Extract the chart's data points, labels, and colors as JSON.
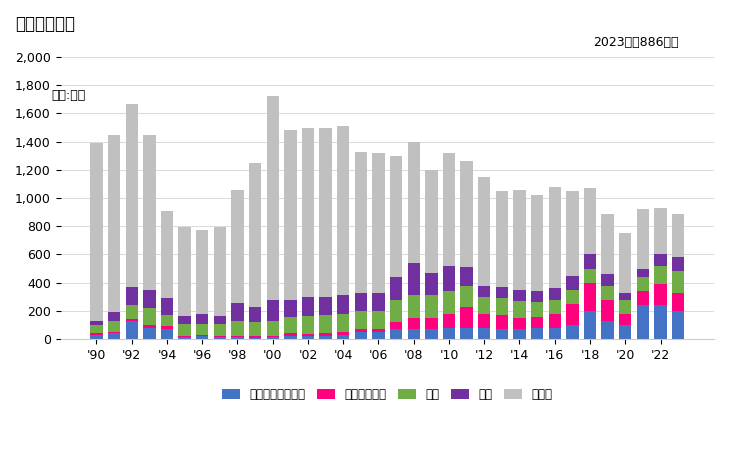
{
  "years": [
    1990,
    1991,
    1992,
    1993,
    1994,
    1995,
    1996,
    1997,
    1998,
    1999,
    2000,
    2001,
    2002,
    2003,
    2004,
    2005,
    2006,
    2007,
    2008,
    2009,
    2010,
    2011,
    2012,
    2013,
    2014,
    2015,
    2016,
    2017,
    2018,
    2019,
    2020,
    2021,
    2022,
    2023
  ],
  "UAE": [
    30,
    40,
    130,
    80,
    70,
    15,
    20,
    15,
    15,
    10,
    15,
    25,
    20,
    20,
    30,
    50,
    50,
    70,
    70,
    70,
    80,
    80,
    80,
    70,
    70,
    80,
    80,
    100,
    200,
    130,
    100,
    240,
    240,
    200
  ],
  "Indonesia": [
    10,
    10,
    10,
    20,
    20,
    10,
    10,
    10,
    10,
    10,
    10,
    15,
    15,
    20,
    20,
    20,
    20,
    50,
    80,
    80,
    100,
    150,
    100,
    100,
    80,
    80,
    100,
    150,
    200,
    150,
    80,
    100,
    150,
    130
  ],
  "USA": [
    60,
    80,
    100,
    120,
    80,
    80,
    80,
    80,
    100,
    100,
    100,
    120,
    130,
    130,
    130,
    130,
    130,
    160,
    160,
    160,
    160,
    150,
    120,
    120,
    120,
    100,
    100,
    100,
    100,
    100,
    100,
    100,
    130,
    150
  ],
  "China": [
    30,
    60,
    130,
    130,
    120,
    60,
    70,
    60,
    130,
    110,
    150,
    120,
    130,
    130,
    130,
    130,
    130,
    160,
    230,
    160,
    180,
    130,
    80,
    80,
    80,
    80,
    80,
    100,
    100,
    80,
    50,
    60,
    80,
    100
  ],
  "Others": [
    1260,
    1260,
    1300,
    1100,
    620,
    630,
    590,
    630,
    800,
    1020,
    1450,
    1200,
    1200,
    1200,
    1200,
    1000,
    990,
    860,
    860,
    730,
    800,
    750,
    770,
    680,
    710,
    680,
    720,
    600,
    470,
    430,
    420,
    420,
    330,
    310
  ],
  "colors": {
    "UAE": "#4472c4",
    "Indonesia": "#ff007f",
    "USA": "#70ad47",
    "China": "#7030a0",
    "Others": "#c0c0c0"
  },
  "title": "輸出量の推移",
  "unit_label": "単位:トン",
  "annotation": "2023年：886トン",
  "ylim": [
    0,
    2100
  ],
  "yticks": [
    0,
    200,
    400,
    600,
    800,
    1000,
    1200,
    1400,
    1600,
    1800,
    2000
  ],
  "legend_labels": [
    "アラブ首長国連邦",
    "インドネシア",
    "米国",
    "中国",
    "その他"
  ],
  "background_color": "#ffffff"
}
